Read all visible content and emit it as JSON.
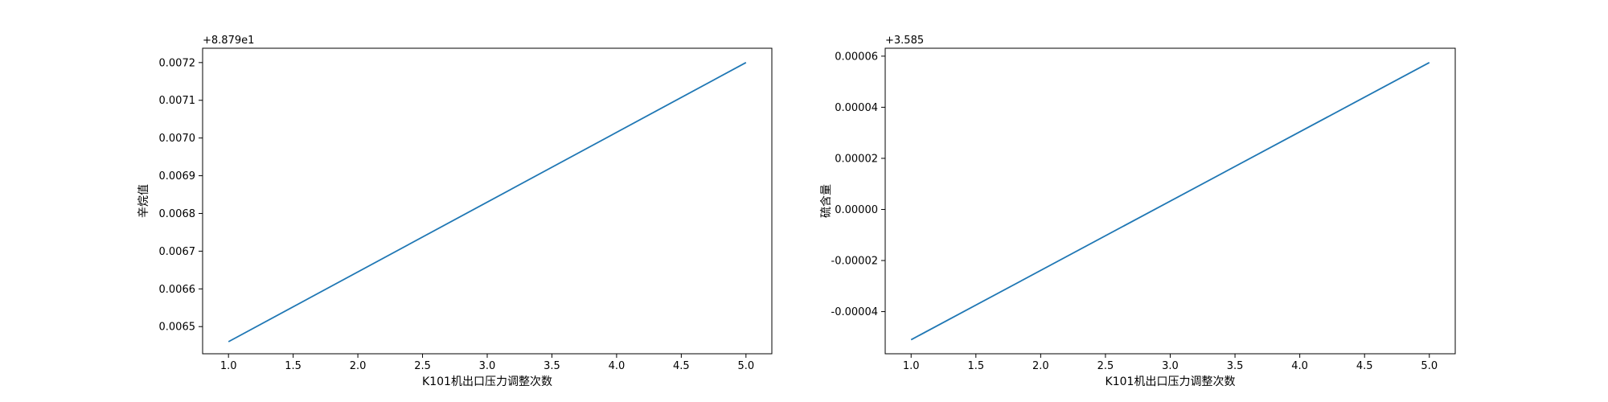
{
  "chart_data": [
    {
      "type": "line",
      "xlabel": "K101机出口压力调整次数",
      "ylabel": "辛烷值",
      "offset_text": "+8.879e1",
      "x": [
        1.0,
        5.0
      ],
      "series": [
        {
          "values": [
            0.00646,
            0.0072
          ]
        }
      ],
      "xlim": [
        0.8,
        5.2
      ],
      "ylim": [
        0.006428,
        0.007238
      ],
      "xticks": [
        1.0,
        1.5,
        2.0,
        2.5,
        3.0,
        3.5,
        4.0,
        4.5,
        5.0
      ],
      "xtick_labels": [
        "1.0",
        "1.5",
        "2.0",
        "2.5",
        "3.0",
        "3.5",
        "4.0",
        "4.5",
        "5.0"
      ],
      "yticks": [
        0.0065,
        0.0066,
        0.0067,
        0.0068,
        0.0069,
        0.007,
        0.0071,
        0.0072
      ],
      "ytick_labels": [
        "0.0065",
        "0.0066",
        "0.0067",
        "0.0068",
        "0.0069",
        "0.0070",
        "0.0071",
        "0.0072"
      ],
      "grid": false,
      "color": "#1f77b4"
    },
    {
      "type": "line",
      "xlabel": "K101机出口压力调整次数",
      "ylabel": "硫含量",
      "offset_text": "+3.585",
      "x": [
        1.0,
        5.0
      ],
      "series": [
        {
          "values": [
            -5.1e-05,
            5.75e-05
          ]
        }
      ],
      "xlim": [
        0.8,
        5.2
      ],
      "ylim": [
        -5.65e-05,
        6.31e-05
      ],
      "xticks": [
        1.0,
        1.5,
        2.0,
        2.5,
        3.0,
        3.5,
        4.0,
        4.5,
        5.0
      ],
      "xtick_labels": [
        "1.0",
        "1.5",
        "2.0",
        "2.5",
        "3.0",
        "3.5",
        "4.0",
        "4.5",
        "5.0"
      ],
      "yticks": [
        -4e-05,
        -2e-05,
        0.0,
        2e-05,
        4e-05,
        6e-05
      ],
      "ytick_labels": [
        "-0.00004",
        "-0.00002",
        "0.00000",
        "0.00002",
        "0.00004",
        "0.00006"
      ],
      "grid": false,
      "color": "#1f77b4"
    }
  ]
}
